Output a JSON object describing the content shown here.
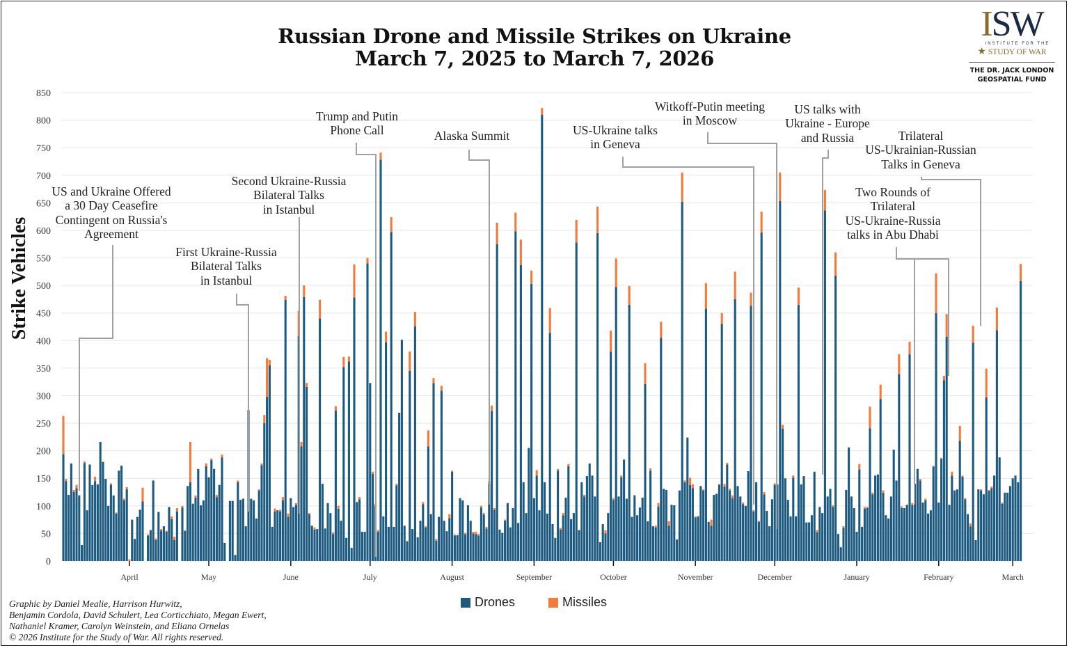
{
  "title": {
    "line1": "Russian Drone and Missile Strikes on Ukraine",
    "line2": "March 7, 2025 to March 7, 2026"
  },
  "logo": {
    "main": "ISW",
    "small": "INSTITUTE FOR THE",
    "name": "STUDY OF WAR",
    "fund": "THE DR. JACK LONDON\nGEOSPATIAL FUND"
  },
  "legend": {
    "drones": "Drones",
    "missiles": "Missiles"
  },
  "credits": "Graphic by Daniel Mealie, Harrison Hurwitz,\nBenjamin Cordola, David Schulert, Lea Corticchiato, Megan Ewert,\nNathaniel Kramer, Carolyn Weinstein, and Eliana Ornelas\n© 2026 Institute for the Study of War. All rights reserved.",
  "annotations": [
    "US and Ukraine Offered\na 30 Day Ceasefire\nContingent on Russia's\nAgreement",
    "First Ukraine-Russia\nBilateral Talks\nin Istanbul",
    "Second Ukraine-Russia\nBilateral Talks\nin Istanbul",
    "Trump and Putin\nPhone Call",
    "Alaska Summit",
    "US-Ukraine talks\nin Geneva",
    "Witkoff-Putin meeting\nin Moscow",
    "US talks with\nUkraine - Europe\nand Russia",
    "Trilateral\nUS-Ukrainian-Russian\nTalks in Geneva",
    "Two Rounds of\nTrilateral\nUS-Ukraine-Russia\ntalks in Abu Dhabi"
  ],
  "chart_data": {
    "type": "bar",
    "stacked": true,
    "title": "Russian Drone and Missile Strikes on Ukraine March 7, 2025 to March 7, 2026",
    "xlabel": "",
    "ylabel": "Strike Vehicles",
    "ylim": [
      0,
      850
    ],
    "yticks": [
      0,
      50,
      100,
      150,
      200,
      250,
      300,
      350,
      400,
      450,
      500,
      550,
      600,
      650,
      700,
      750,
      800,
      850
    ],
    "xticks": [
      "April",
      "May",
      "June",
      "July",
      "August",
      "September",
      "October",
      "November",
      "December",
      "January",
      "February",
      "March"
    ],
    "grid": true,
    "legend": "bottom",
    "colors": {
      "Drones": "#1d5a80",
      "Missiles": "#f47a3a",
      "grid": "#e6e6e6",
      "annotation_line": "#a0a0a0"
    },
    "series": [
      {
        "name": "Drones",
        "values": [
          194,
          145,
          120,
          177,
          125,
          132,
          118,
          29,
          178,
          92,
          175,
          138,
          145,
          139,
          216,
          180,
          149,
          100,
          138,
          119,
          86,
          164,
          173,
          110,
          130,
          0,
          75,
          40,
          80,
          93,
          108,
          null,
          46,
          56,
          146,
          38,
          89,
          55,
          63,
          53,
          98,
          76,
          38,
          90,
          null,
          97,
          55,
          136,
          143,
          104,
          115,
          167,
          101,
          110,
          172,
          152,
          183,
          167,
          116,
          138,
          188,
          33,
          null,
          109,
          109,
          11,
          143,
          111,
          113,
          63,
          274,
          113,
          110,
          77,
          128,
          174,
          250,
          298,
          355,
          62,
          90,
          92,
          90,
          110,
          474,
          80,
          114,
          98,
          102,
          408,
          208,
          479,
          316,
          85,
          64,
          57,
          58,
          440,
          140,
          59,
          105,
          87,
          49,
          273,
          95,
          73,
          352,
          42,
          362,
          24,
          478,
          107,
          112,
          53,
          53,
          540,
          323,
          158,
          100,
          53,
          728,
          81,
          397,
          62,
          597,
          62,
          137,
          269,
          401,
          64,
          36,
          345,
          58,
          426,
          43,
          73,
          103,
          61,
          208,
          85,
          323,
          37,
          80,
          309,
          73,
          54,
          78,
          162,
          46,
          47,
          114,
          110,
          48,
          101,
          73,
          50,
          49,
          46,
          97,
          84,
          59,
          140,
          272,
          93,
          575,
          57,
          51,
          73,
          105,
          61,
          96,
          598,
          69,
          537,
          143,
          87,
          205,
          503,
          114,
          155,
          92,
          810,
          143,
          86,
          414,
          67,
          42,
          164,
          57,
          83,
          115,
          172,
          76,
          87,
          578,
          56,
          143,
          117,
          154,
          177,
          155,
          117,
          595,
          34,
          67,
          50,
          87,
          380,
          111,
          497,
          117,
          152,
          184,
          113,
          465,
          80,
          118,
          83,
          97,
          115,
          321,
          72,
          164,
          63,
          61,
          99,
          405,
          131,
          129,
          64,
          102,
          101,
          39,
          128,
          652,
          143,
          224,
          138,
          132,
          79,
          81,
          136,
          128,
          458,
          71,
          64,
          120,
          122,
          138,
          430,
          135,
          175,
          128,
          114,
          475,
          136,
          117,
          103,
          100,
          163,
          463,
          90,
          143,
          71,
          596,
          121,
          91,
          63,
          112,
          138,
          139,
          653,
          240,
          150,
          111,
          81,
          151,
          81,
          465,
          139,
          154,
          70,
          70,
          83,
          162,
          52,
          98,
          87,
          636,
          117,
          131,
          98,
          518,
          49,
          25,
          60,
          129,
          206,
          117,
          96,
          53,
          166,
          62,
          95,
          96,
          241,
          121,
          155,
          157,
          294,
          124,
          83,
          77,
          117,
          202,
          146,
          339,
          96,
          96,
          102,
          375,
          101,
          140,
          167,
          146,
          106,
          110,
          86,
          92,
          171,
          450,
          106,
          185,
          328,
          407,
          102,
          155,
          128,
          130,
          218,
          153,
          112,
          85,
          63,
          396,
          38,
          130,
          128,
          121,
          297,
          127,
          132,
          155,
          419,
          188,
          104,
          124,
          124,
          136,
          150,
          155,
          143,
          508
        ]
      },
      {
        "name": "Missiles",
        "values": [
          69,
          4,
          0,
          0,
          4,
          6,
          2,
          0,
          3,
          0,
          0,
          0,
          8,
          0,
          0,
          0,
          0,
          0,
          3,
          0,
          2,
          0,
          0,
          3,
          4,
          3,
          0,
          0,
          0,
          0,
          25,
          null,
          2,
          0,
          0,
          3,
          0,
          3,
          0,
          2,
          0,
          5,
          6,
          6,
          null,
          3,
          0,
          0,
          73,
          0,
          4,
          0,
          0,
          0,
          5,
          0,
          3,
          0,
          4,
          0,
          5,
          0,
          null,
          0,
          0,
          0,
          3,
          0,
          0,
          0,
          0,
          0,
          0,
          0,
          2,
          3,
          15,
          70,
          10,
          0,
          5,
          0,
          3,
          6,
          7,
          6,
          0,
          0,
          3,
          46,
          8,
          21,
          7,
          2,
          0,
          4,
          0,
          34,
          0,
          0,
          0,
          0,
          3,
          8,
          5,
          0,
          18,
          0,
          9,
          0,
          60,
          0,
          4,
          0,
          0,
          10,
          0,
          4,
          4,
          3,
          13,
          0,
          19,
          0,
          27,
          0,
          3,
          0,
          1,
          0,
          0,
          35,
          0,
          26,
          0,
          0,
          4,
          2,
          29,
          0,
          9,
          3,
          0,
          9,
          0,
          0,
          7,
          2,
          2,
          0,
          0,
          0,
          3,
          0,
          0,
          3,
          4,
          3,
          3,
          3,
          3,
          5,
          10,
          3,
          39,
          0,
          0,
          2,
          0,
          0,
          0,
          34,
          0,
          46,
          0,
          0,
          0,
          24,
          0,
          10,
          0,
          12,
          0,
          0,
          45,
          0,
          0,
          3,
          3,
          4,
          0,
          4,
          0,
          0,
          41,
          0,
          0,
          3,
          0,
          0,
          0,
          0,
          48,
          0,
          0,
          6,
          0,
          38,
          3,
          52,
          0,
          3,
          0,
          0,
          34,
          0,
          2,
          0,
          0,
          0,
          38,
          0,
          4,
          0,
          3,
          6,
          29,
          0,
          0,
          8,
          0,
          0,
          0,
          0,
          53,
          3,
          0,
          13,
          7,
          2,
          0,
          0,
          2,
          46,
          0,
          11,
          0,
          0,
          2,
          20,
          5,
          3,
          3,
          5,
          50,
          0,
          0,
          3,
          0,
          0,
          24,
          2,
          0,
          2,
          38,
          4,
          0,
          0,
          0,
          3,
          0,
          52,
          7,
          0,
          0,
          0,
          4,
          0,
          31,
          0,
          0,
          0,
          0,
          0,
          0,
          4,
          0,
          0,
          37,
          0,
          0,
          3,
          42,
          0,
          0,
          3,
          0,
          0,
          0,
          0,
          0,
          10,
          0,
          3,
          2,
          39,
          3,
          0,
          0,
          26,
          4,
          0,
          0,
          0,
          0,
          0,
          36,
          3,
          0,
          0,
          23,
          4,
          0,
          0,
          3,
          0,
          3,
          0,
          0,
          2,
          72,
          0,
          2,
          8,
          41,
          0,
          7,
          0,
          0,
          27,
          2,
          2,
          0,
          5,
          31,
          0,
          0,
          2,
          0,
          52,
          2,
          3,
          0,
          41,
          0,
          2,
          0,
          0,
          0,
          0,
          0,
          0,
          31
        ]
      }
    ]
  }
}
